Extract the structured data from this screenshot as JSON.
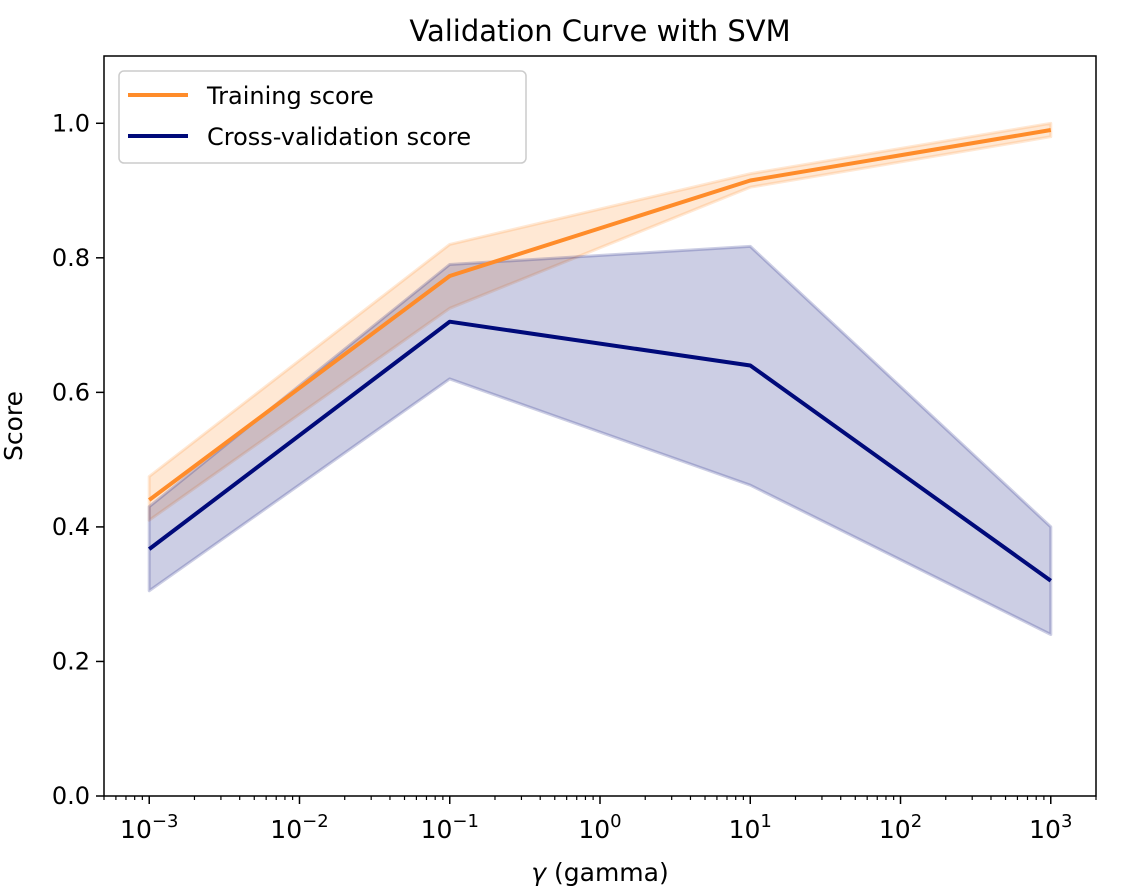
{
  "chart_data": {
    "type": "line",
    "title": "Validation Curve with SVM",
    "xlabel_symbol": "γ",
    "xlabel_text": " (gamma)",
    "ylabel": "Score",
    "x_scale": "log",
    "x": [
      0.001,
      0.1,
      10,
      1000
    ],
    "xlim": [
      0.0005,
      2000
    ],
    "ylim": [
      0.0,
      1.1
    ],
    "x_ticks": [
      {
        "value": 0.001,
        "base": "10",
        "exp": "−3"
      },
      {
        "value": 0.01,
        "base": "10",
        "exp": "−2"
      },
      {
        "value": 0.1,
        "base": "10",
        "exp": "−1"
      },
      {
        "value": 1,
        "base": "10",
        "exp": "0"
      },
      {
        "value": 10,
        "base": "10",
        "exp": "1"
      },
      {
        "value": 100,
        "base": "10",
        "exp": "2"
      },
      {
        "value": 1000,
        "base": "10",
        "exp": "3"
      }
    ],
    "y_ticks": [
      {
        "value": 0.0,
        "label": "0.0"
      },
      {
        "value": 0.2,
        "label": "0.2"
      },
      {
        "value": 0.4,
        "label": "0.4"
      },
      {
        "value": 0.6,
        "label": "0.6"
      },
      {
        "value": 0.8,
        "label": "0.8"
      },
      {
        "value": 1.0,
        "label": "1.0"
      }
    ],
    "legend_position": "top-left",
    "grid": false,
    "series": [
      {
        "name": "Training score",
        "color": "#ff8c2a",
        "values": [
          0.44,
          0.773,
          0.915,
          0.99
        ],
        "band_lower": [
          0.41,
          0.725,
          0.905,
          0.98
        ],
        "band_upper": [
          0.475,
          0.82,
          0.925,
          1.0
        ]
      },
      {
        "name": "Cross-validation score",
        "color": "#000a7a",
        "values": [
          0.367,
          0.705,
          0.64,
          0.32
        ],
        "band_lower": [
          0.305,
          0.62,
          0.462,
          0.24
        ],
        "band_upper": [
          0.43,
          0.79,
          0.817,
          0.4
        ]
      }
    ]
  }
}
